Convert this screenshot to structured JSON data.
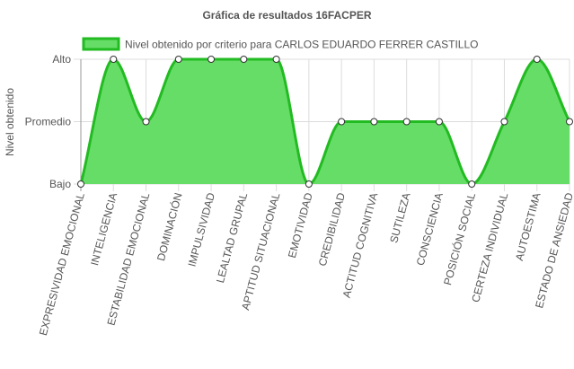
{
  "chart_data": {
    "type": "line",
    "title": "Gráfica de resultados 16FACPER",
    "ylabel": "Nivel obtenido",
    "xlabel": "",
    "y_levels": [
      "Bajo",
      "Promedio",
      "Alto"
    ],
    "categories": [
      "EXPRESIVIDAD EMOCIONAL",
      "INTELIGENCIA",
      "ESTABILIDAD EMOCIONAL",
      "DOMINACIÓN",
      "IMPULSIVIDAD",
      "LEALTAD GRUPAL",
      "APTITUD SITUACIONAL",
      "EMOTIVIDAD",
      "CREDIBILIDAD",
      "ACTITUD COGNITIVA",
      "SUTILEZA",
      "CONSCIENCIA",
      "POSICIÓN SOCIAL",
      "CERTEZA INDIVIDUAL",
      "AUTOESTIMA",
      "ESTADO DE ANSIEDAD"
    ],
    "series": [
      {
        "name": "Nivel obtenido por criterio para CARLOS EDUARDO FERRER CASTILLO",
        "values": [
          "Bajo",
          "Alto",
          "Promedio",
          "Alto",
          "Alto",
          "Alto",
          "Alto",
          "Bajo",
          "Promedio",
          "Promedio",
          "Promedio",
          "Promedio",
          "Bajo",
          "Promedio",
          "Alto",
          "Promedio"
        ],
        "fill_color": "#66dd66",
        "line_color": "#22bb22"
      }
    ],
    "legend": "top",
    "grid": true
  }
}
